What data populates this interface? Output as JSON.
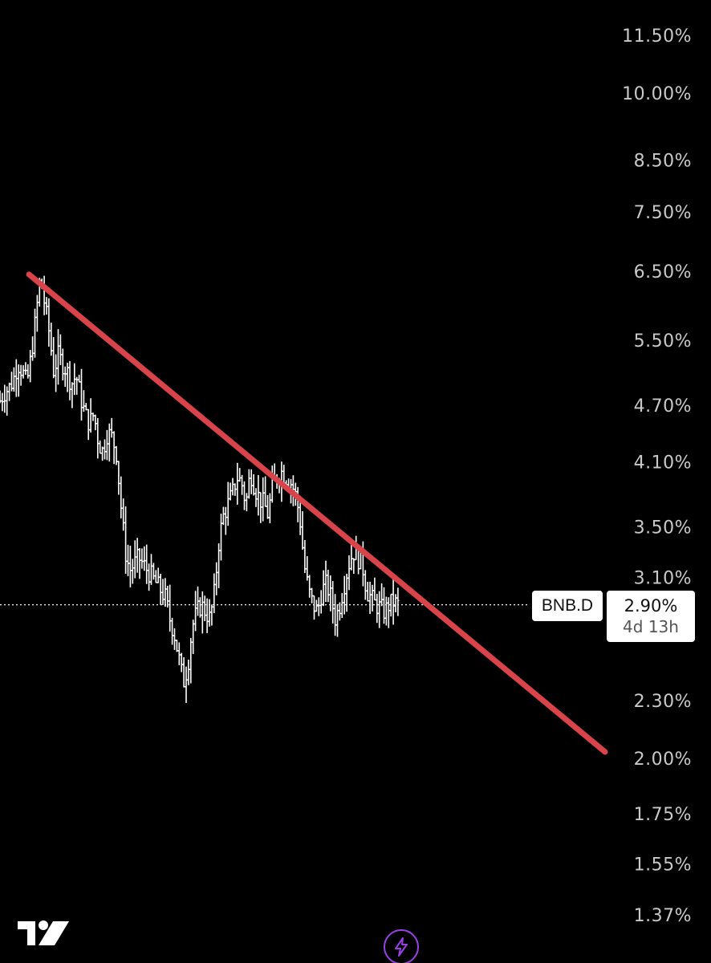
{
  "chart_data": {
    "type": "ohlc",
    "symbol": "BNB.D",
    "last_value": "2.90%",
    "countdown": "4d 13h",
    "y_scale": "log",
    "y_ticks": [
      "11.50%",
      "10.00%",
      "8.50%",
      "7.50%",
      "6.50%",
      "5.50%",
      "4.70%",
      "4.10%",
      "3.50%",
      "3.10%",
      "2.30%",
      "2.00%",
      "1.75%",
      "1.55%",
      "1.37%"
    ],
    "y_tick_values": [
      11.5,
      10.0,
      8.5,
      7.5,
      6.5,
      5.5,
      4.7,
      4.1,
      3.5,
      3.1,
      2.3,
      2.0,
      1.75,
      1.55,
      1.37
    ],
    "series_close": [
      4.75,
      4.85,
      4.9,
      5.0,
      5.2,
      5.1,
      4.95,
      5.3,
      5.8,
      6.4,
      6.0,
      5.6,
      5.1,
      5.3,
      5.2,
      5.1,
      4.95,
      5.05,
      4.8,
      4.6,
      4.5,
      4.6,
      4.3,
      4.2,
      4.4,
      4.35,
      4.2,
      3.7,
      3.3,
      3.15,
      3.2,
      3.25,
      3.2,
      3.15,
      3.1,
      3.05,
      3.0,
      2.95,
      2.8,
      2.7,
      2.55,
      2.4,
      2.5,
      2.75,
      2.85,
      2.9,
      2.85,
      2.8,
      3.0,
      3.4,
      3.6,
      3.7,
      3.8,
      3.95,
      3.9,
      3.7,
      4.0,
      3.85,
      3.75,
      3.7,
      3.6,
      3.9,
      3.95,
      4.0,
      3.95,
      3.9,
      3.8,
      3.6,
      3.2,
      3.0,
      2.9,
      2.85,
      3.0,
      3.05,
      2.95,
      2.8,
      2.9,
      3.05,
      3.2,
      3.3,
      3.25,
      3.2,
      3.0,
      2.95,
      2.9,
      2.88,
      2.85,
      2.9,
      2.92,
      2.9
    ]
  },
  "trendline": {
    "color": "#d9434a",
    "start": {
      "bar": 9,
      "value": 6.4
    },
    "end": {
      "bar": 171,
      "value": 2.0
    }
  },
  "current_line_value": 2.9,
  "toolbar": {
    "logo_icon": "tradingview-logo-icon",
    "flash_icon": "lightning-icon"
  },
  "colors": {
    "background": "#000000",
    "bars": "#ffffff",
    "axis_text": "#c9c9c9",
    "accent": "#9b3fe6"
  }
}
